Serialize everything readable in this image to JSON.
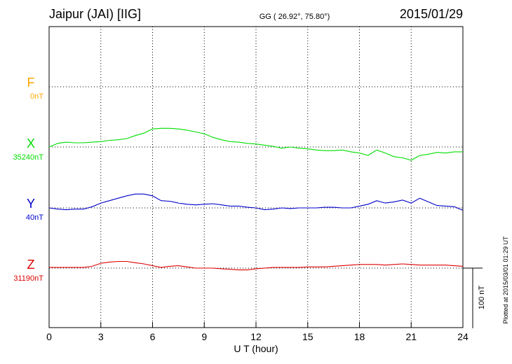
{
  "header": {
    "station": "Jaipur (JAI)  [IIG]",
    "coords": "GG ( 26.92°,  75.80°)",
    "date": "2015/01/29"
  },
  "side_note": "Plotted at 2015/03/01 01:29 UT",
  "scale_label": "100 nT",
  "colors": {
    "F": "#ffa500",
    "X": "#00dd00",
    "Y": "#0000cc",
    "Z": "#dd0000"
  },
  "chart_data": {
    "type": "line",
    "xlabel": "U T (hour)",
    "xlim": [
      0,
      24
    ],
    "x_ticks": [
      "0",
      "3",
      "6",
      "9",
      "12",
      "15",
      "18",
      "21",
      "24"
    ],
    "scale_bar_nT": 100,
    "series": [
      {
        "name": "F",
        "baseline_label": "0nT",
        "values": []
      },
      {
        "name": "X",
        "baseline_label": "35240nT",
        "x": [
          0,
          0.5,
          1,
          1.5,
          2,
          2.5,
          3,
          3.5,
          4,
          4.5,
          5,
          5.5,
          6,
          6.5,
          7,
          7.5,
          8,
          8.5,
          9,
          9.5,
          10,
          10.5,
          11,
          11.5,
          12,
          12.5,
          13,
          13.5,
          14,
          14.5,
          15,
          15.5,
          16,
          16.5,
          17,
          17.5,
          18,
          18.5,
          19,
          19.5,
          20,
          20.5,
          21,
          21.5,
          22,
          22.5,
          23,
          23.5,
          24
        ],
        "values": [
          0,
          6,
          8,
          7,
          7,
          8,
          9,
          11,
          12,
          14,
          19,
          23,
          30,
          31,
          31,
          30,
          28,
          25,
          22,
          16,
          12,
          9,
          8,
          6,
          5,
          3,
          1,
          -2,
          0,
          -2,
          -3,
          -5,
          -6,
          -6,
          -5,
          -8,
          -10,
          -14,
          -5,
          -10,
          -16,
          -18,
          -22,
          -14,
          -12,
          -9,
          -10,
          -8,
          -8
        ]
      },
      {
        "name": "Y",
        "baseline_label": "40nT",
        "x": [
          0,
          0.5,
          1,
          1.5,
          2,
          2.5,
          3,
          3.5,
          4,
          4.5,
          5,
          5.5,
          6,
          6.5,
          7,
          7.5,
          8,
          8.5,
          9,
          9.5,
          10,
          10.5,
          11,
          11.5,
          12,
          12.5,
          13,
          13.5,
          14,
          14.5,
          15,
          15.5,
          16,
          16.5,
          17,
          17.5,
          18,
          18.5,
          19,
          19.5,
          20,
          20.5,
          21,
          21.5,
          22,
          22.5,
          23,
          23.5,
          24
        ],
        "values": [
          0,
          -2,
          -3,
          -2,
          -2,
          2,
          8,
          12,
          16,
          20,
          23,
          23,
          20,
          12,
          11,
          8,
          6,
          5,
          6,
          7,
          5,
          3,
          3,
          1,
          0,
          -3,
          -2,
          0,
          -1,
          0,
          0,
          0,
          1,
          1,
          0,
          0,
          3,
          6,
          12,
          8,
          10,
          13,
          8,
          16,
          10,
          4,
          3,
          2,
          -4
        ]
      },
      {
        "name": "Z",
        "baseline_label": "31190nT",
        "x": [
          0,
          0.5,
          1,
          1.5,
          2,
          2.5,
          3,
          3.5,
          4,
          4.5,
          5,
          5.5,
          6,
          6.5,
          7,
          7.5,
          8,
          8.5,
          9,
          9.5,
          10,
          10.5,
          11,
          11.5,
          12,
          12.5,
          13,
          13.5,
          14,
          14.5,
          15,
          15.5,
          16,
          16.5,
          17,
          17.5,
          18,
          18.5,
          19,
          19.5,
          20,
          20.5,
          21,
          21.5,
          22,
          22.5,
          23,
          23.5,
          24
        ],
        "values": [
          1,
          1,
          1,
          1,
          1,
          3,
          8,
          10,
          11,
          11,
          9,
          7,
          4,
          1,
          3,
          4,
          2,
          0,
          0,
          0,
          -1,
          -2,
          -3,
          -3,
          -1,
          0,
          1,
          1,
          1,
          1,
          2,
          2,
          2,
          3,
          4,
          5,
          6,
          6,
          6,
          5,
          6,
          7,
          6,
          5,
          5,
          5,
          5,
          4,
          3
        ]
      }
    ]
  }
}
